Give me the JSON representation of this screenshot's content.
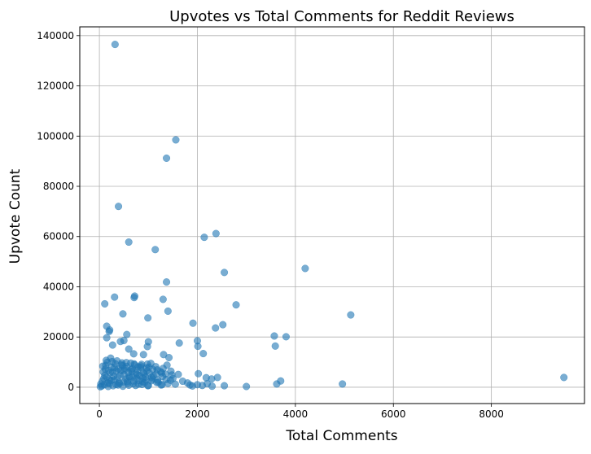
{
  "chart_data": {
    "type": "scatter",
    "title": "Upvotes vs Total Comments for Reddit Reviews",
    "xlabel": "Total Comments",
    "ylabel": "Upvote Count",
    "xlim": [
      -400,
      9900
    ],
    "ylim": [
      -6500,
      143500
    ],
    "xticks": [
      0,
      2000,
      4000,
      6000,
      8000
    ],
    "yticks": [
      0,
      20000,
      40000,
      60000,
      80000,
      100000,
      120000,
      140000
    ],
    "grid": true,
    "marker_color": "#1f77b4",
    "marker_alpha": 0.6,
    "points": [
      [
        320,
        136500
      ],
      [
        1560,
        98500
      ],
      [
        1370,
        91200
      ],
      [
        390,
        72000
      ],
      [
        2380,
        61200
      ],
      [
        2140,
        59700
      ],
      [
        600,
        57800
      ],
      [
        1140,
        54800
      ],
      [
        4200,
        47300
      ],
      [
        2550,
        45700
      ],
      [
        1370,
        41900
      ],
      [
        720,
        36300
      ],
      [
        710,
        35700
      ],
      [
        1300,
        35000
      ],
      [
        310,
        35900
      ],
      [
        110,
        33200
      ],
      [
        2790,
        32800
      ],
      [
        1400,
        30300
      ],
      [
        480,
        29200
      ],
      [
        5130,
        28800
      ],
      [
        990,
        27600
      ],
      [
        1910,
        25500
      ],
      [
        2520,
        24900
      ],
      [
        2370,
        23600
      ],
      [
        150,
        24300
      ],
      [
        210,
        22800
      ],
      [
        200,
        22200
      ],
      [
        560,
        21000
      ],
      [
        3570,
        20400
      ],
      [
        3810,
        20100
      ],
      [
        150,
        19700
      ],
      [
        500,
        18600
      ],
      [
        430,
        18200
      ],
      [
        2000,
        18500
      ],
      [
        1000,
        18100
      ],
      [
        1630,
        17600
      ],
      [
        3590,
        16400
      ],
      [
        2010,
        16300
      ],
      [
        270,
        16800
      ],
      [
        980,
        16200
      ],
      [
        600,
        15200
      ],
      [
        1310,
        13000
      ],
      [
        1420,
        11800
      ],
      [
        2120,
        13400
      ],
      [
        700,
        13300
      ],
      [
        900,
        13000
      ],
      [
        230,
        11600
      ],
      [
        140,
        10700
      ],
      [
        1610,
        5100
      ],
      [
        2020,
        5400
      ],
      [
        2410,
        3900
      ],
      [
        3700,
        2500
      ],
      [
        3620,
        1300
      ],
      [
        4960,
        1300
      ],
      [
        9480,
        3900
      ],
      [
        2180,
        3800
      ],
      [
        2290,
        3300
      ],
      [
        1850,
        900
      ],
      [
        2550,
        600
      ],
      [
        3000,
        300
      ],
      [
        400,
        2000
      ],
      [
        200,
        1500
      ],
      [
        100,
        1000
      ],
      [
        50,
        500
      ],
      [
        20,
        200
      ],
      [
        150,
        4000
      ],
      [
        300,
        3000
      ],
      [
        500,
        5000
      ],
      [
        700,
        2500
      ],
      [
        900,
        6000
      ],
      [
        1100,
        4500
      ],
      [
        1300,
        7500
      ],
      [
        1500,
        3500
      ],
      [
        250,
        8000
      ],
      [
        450,
        9000
      ],
      [
        650,
        7000
      ],
      [
        850,
        8500
      ],
      [
        1050,
        9500
      ],
      [
        350,
        6500
      ],
      [
        550,
        9800
      ],
      [
        750,
        5500
      ],
      [
        950,
        3000
      ],
      [
        1200,
        2000
      ],
      [
        1400,
        1500
      ],
      [
        600,
        800
      ],
      [
        800,
        1200
      ],
      [
        1000,
        700
      ],
      [
        180,
        300
      ],
      [
        280,
        600
      ],
      [
        380,
        900
      ],
      [
        480,
        400
      ],
      [
        580,
        1600
      ],
      [
        680,
        4200
      ],
      [
        780,
        6800
      ],
      [
        880,
        2200
      ],
      [
        980,
        9200
      ],
      [
        1150,
        8200
      ],
      [
        1250,
        6200
      ],
      [
        1350,
        5200
      ],
      [
        1450,
        2800
      ],
      [
        120,
        7200
      ],
      [
        220,
        5800
      ],
      [
        320,
        9400
      ],
      [
        420,
        4800
      ],
      [
        520,
        7600
      ],
      [
        620,
        3800
      ],
      [
        720,
        8900
      ],
      [
        820,
        4600
      ],
      [
        920,
        1800
      ],
      [
        1020,
        5600
      ],
      [
        60,
        2400
      ],
      [
        80,
        6100
      ],
      [
        130,
        8700
      ],
      [
        240,
        2700
      ],
      [
        340,
        1100
      ],
      [
        440,
        6600
      ],
      [
        540,
        3300
      ],
      [
        640,
        9600
      ],
      [
        740,
        700
      ],
      [
        840,
        7900
      ],
      [
        940,
        4100
      ],
      [
        1080,
        3200
      ],
      [
        1180,
        6900
      ],
      [
        1280,
        1000
      ],
      [
        1380,
        8800
      ],
      [
        1480,
        4900
      ],
      [
        1550,
        1200
      ],
      [
        1700,
        2400
      ],
      [
        1800,
        1700
      ],
      [
        1900,
        500
      ],
      [
        2000,
        1000
      ],
      [
        2100,
        700
      ],
      [
        2200,
        1400
      ],
      [
        2300,
        400
      ],
      [
        160,
        9900
      ],
      [
        260,
        10200
      ],
      [
        360,
        10500
      ],
      [
        460,
        9700
      ],
      [
        560,
        8300
      ],
      [
        660,
        6300
      ],
      [
        760,
        3600
      ],
      [
        860,
        9100
      ],
      [
        960,
        7700
      ],
      [
        1060,
        2600
      ],
      [
        1160,
        5300
      ],
      [
        1260,
        900
      ],
      [
        1360,
        3100
      ],
      [
        1460,
        6400
      ],
      [
        90,
        3500
      ],
      [
        190,
        6700
      ],
      [
        290,
        4400
      ],
      [
        390,
        7300
      ],
      [
        490,
        2100
      ],
      [
        590,
        5900
      ],
      [
        690,
        1400
      ],
      [
        790,
        8100
      ],
      [
        890,
        3700
      ],
      [
        990,
        600
      ],
      [
        1090,
        7100
      ],
      [
        1190,
        2900
      ],
      [
        1290,
        4300
      ],
      [
        70,
        8400
      ],
      [
        170,
        1700
      ],
      [
        270,
        6000
      ],
      [
        370,
        3900
      ],
      [
        470,
        8600
      ],
      [
        570,
        2300
      ],
      [
        670,
        7400
      ],
      [
        770,
        5000
      ],
      [
        870,
        1100
      ],
      [
        970,
        6500
      ],
      [
        1070,
        4000
      ],
      [
        1170,
        1900
      ],
      [
        1270,
        5700
      ],
      [
        30,
        1300
      ],
      [
        110,
        4700
      ],
      [
        210,
        2900
      ],
      [
        310,
        7800
      ],
      [
        410,
        1500
      ],
      [
        510,
        6800
      ],
      [
        610,
        4300
      ],
      [
        710,
        9300
      ],
      [
        810,
        2700
      ],
      [
        910,
        5400
      ],
      [
        1010,
        8000
      ]
    ]
  }
}
